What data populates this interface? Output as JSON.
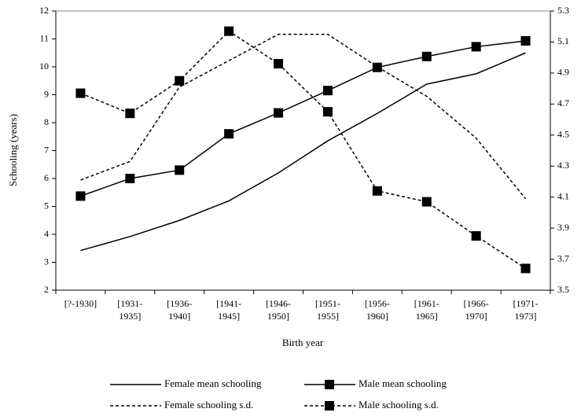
{
  "chart_data": {
    "type": "line",
    "xlabel": "Birth year",
    "ylabel": "Schooling (years)",
    "categories": [
      "[?-1930]",
      "[1931-1935]",
      "[1936-1940]",
      "[1941-1945]",
      "[1946-1950]",
      "[1951-1955]",
      "[1956-1960]",
      "[1961-1965]",
      "[1966-1970]",
      "[1971-1973]"
    ],
    "ylim": [
      2,
      12
    ],
    "yticks": [
      2,
      3,
      4,
      5,
      6,
      7,
      8,
      9,
      10,
      11,
      12
    ],
    "y2lim": [
      3.5,
      5.3
    ],
    "y2ticks": [
      3.5,
      3.7,
      3.9,
      4.1,
      4.3,
      4.5,
      4.7,
      4.9,
      5.1,
      5.3
    ],
    "series": [
      {
        "name": "Female mean schooling",
        "color": "#000000",
        "dashed": false,
        "marker": false,
        "values": [
          3.42,
          3.92,
          4.5,
          5.2,
          6.2,
          7.35,
          8.33,
          9.38,
          9.75,
          10.5
        ]
      },
      {
        "name": "Male mean schooling",
        "color": "#000000",
        "dashed": false,
        "marker": true,
        "values": [
          5.37,
          6.0,
          6.3,
          7.6,
          8.35,
          9.15,
          9.98,
          10.37,
          10.72,
          10.93
        ]
      },
      {
        "name": "Female schooling s.d.",
        "color": "#000000",
        "dashed": true,
        "marker": false,
        "axis": "y2",
        "values": [
          4.21,
          4.33,
          4.81,
          4.98,
          5.15,
          5.15,
          4.94,
          4.75,
          4.48,
          4.09
        ]
      },
      {
        "name": "Male schooling s.d.",
        "color": "#000000",
        "dashed": true,
        "marker": true,
        "axis": "y2",
        "values": [
          4.77,
          4.64,
          4.85,
          5.17,
          4.96,
          4.65,
          4.14,
          4.07,
          3.85,
          3.64
        ]
      }
    ]
  }
}
